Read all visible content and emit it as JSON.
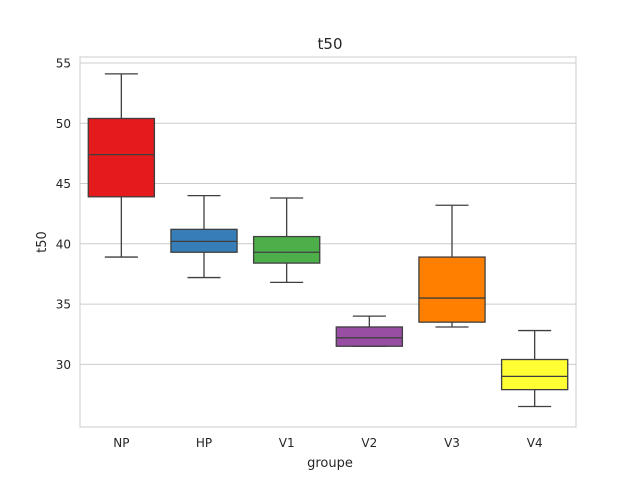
{
  "chart_data": {
    "type": "box",
    "title": "t50",
    "xlabel": "groupe",
    "ylabel": "t50",
    "ylim": [
      24.8,
      55.5
    ],
    "yticks": [
      30,
      35,
      40,
      45,
      50,
      55
    ],
    "grid": "horizontal",
    "categories": [
      "NP",
      "HP",
      "V1",
      "V2",
      "V3",
      "V4"
    ],
    "colors": [
      "#e41a1c",
      "#377eb8",
      "#4daf4a",
      "#984ea3",
      "#ff7f00",
      "#ffff33"
    ],
    "boxes": [
      {
        "group": "NP",
        "whisker_low": 38.9,
        "q1": 43.9,
        "median": 47.4,
        "q3": 50.4,
        "whisker_high": 54.1
      },
      {
        "group": "HP",
        "whisker_low": 37.2,
        "q1": 39.3,
        "median": 40.2,
        "q3": 41.2,
        "whisker_high": 44.0
      },
      {
        "group": "V1",
        "whisker_low": 36.8,
        "q1": 38.4,
        "median": 39.3,
        "q3": 40.6,
        "whisker_high": 43.8
      },
      {
        "group": "V2",
        "whisker_low": 31.5,
        "q1": 31.5,
        "median": 32.2,
        "q3": 33.1,
        "whisker_high": 34.0
      },
      {
        "group": "V3",
        "whisker_low": 33.1,
        "q1": 33.5,
        "median": 35.5,
        "q3": 38.9,
        "whisker_high": 43.2
      },
      {
        "group": "V4",
        "whisker_low": 26.5,
        "q1": 27.9,
        "median": 29.0,
        "q3": 30.4,
        "whisker_high": 32.8
      }
    ]
  }
}
